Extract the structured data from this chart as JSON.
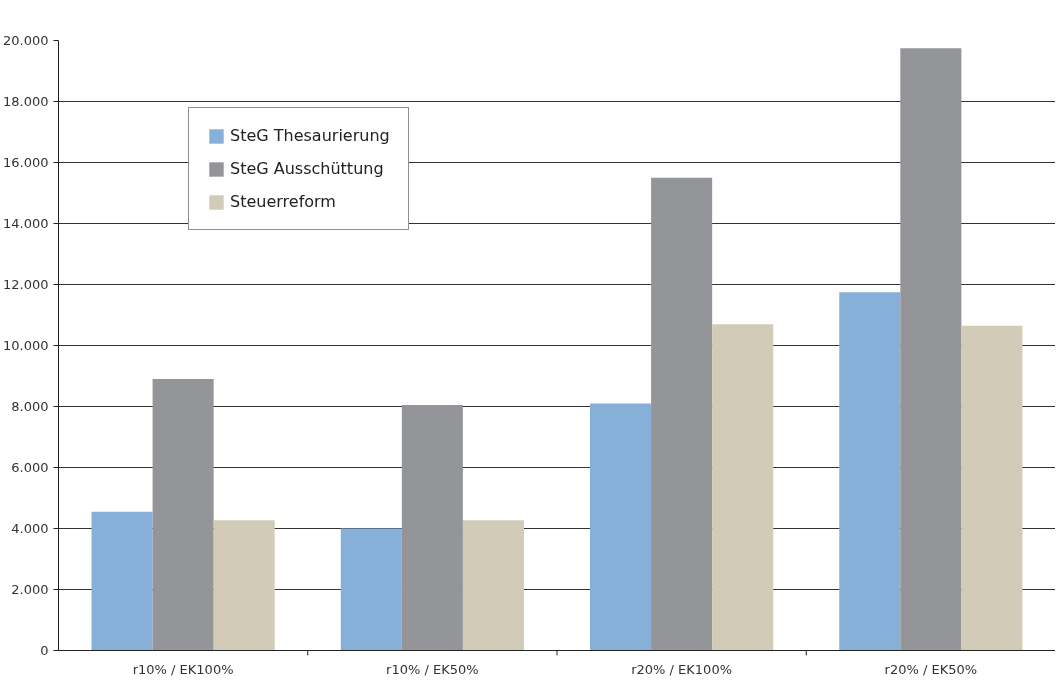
{
  "chart_data": {
    "type": "bar",
    "categories": [
      "r10% / EK100%",
      "r10% / EK50%",
      "r20% / EK100%",
      "r20% / EK50%"
    ],
    "series": [
      {
        "name": "SteG Thesaurierung",
        "color": "#86b0d8",
        "values": [
          4550,
          4000,
          8100,
          11750
        ]
      },
      {
        "name": "SteG Ausschüttung",
        "color": "#949598",
        "values": [
          8900,
          8050,
          15500,
          19750
        ]
      },
      {
        "name": "Steuerreform",
        "color": "#d2cbb7",
        "values": [
          4270,
          4270,
          10700,
          10650
        ]
      }
    ],
    "ylim": [
      0,
      20000
    ],
    "yticks": [
      0,
      {
        "value": 2000,
        "label": "2.000"
      },
      {
        "value": 4000,
        "label": "4.000"
      },
      {
        "value": 6000,
        "label": "6.000"
      },
      {
        "value": 8000,
        "label": "8.000"
      },
      {
        "value": 10000,
        "label": "10.000"
      },
      {
        "value": 12000,
        "label": "12.000"
      },
      {
        "value": 14000,
        "label": "14.000"
      },
      {
        "value": 16000,
        "label": "16.000"
      },
      {
        "value": 18000,
        "label": "18.000"
      },
      {
        "value": 20000,
        "label": "20.000"
      }
    ],
    "grid": "y",
    "legend": "top left"
  }
}
